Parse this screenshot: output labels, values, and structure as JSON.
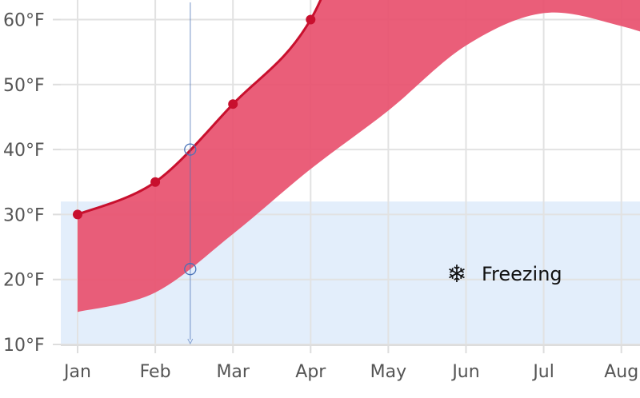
{
  "chart_data": {
    "type": "area",
    "subtype": "arearange",
    "categories": [
      "Jan",
      "Feb",
      "Mar",
      "Apr",
      "May",
      "Jun",
      "Jul",
      "Aug"
    ],
    "series": [
      {
        "role": "high",
        "values": [
          30,
          35,
          47,
          60,
          null,
          null,
          null,
          null
        ],
        "color": "#c8102e",
        "markers": true
      },
      {
        "role": "low",
        "values": [
          15,
          18,
          27,
          37,
          46,
          56,
          61,
          59
        ]
      }
    ],
    "fill_color": "#e8506e",
    "ylim": [
      10,
      63
    ],
    "y_ticks": [
      10,
      20,
      30,
      40,
      50,
      60
    ],
    "y_tick_labels": [
      "10°F",
      "20°F",
      "30°F",
      "40°F",
      "50°F",
      "60°F"
    ],
    "grid": true,
    "plot_band": {
      "from": 10,
      "to": 32,
      "label": "Freezing",
      "icon": "snowflake-icon",
      "color": "#e3eefb"
    },
    "crosshair": {
      "x_month_index": 1.45,
      "high": 40,
      "low": 21.6,
      "color": "#4a72b8"
    }
  }
}
